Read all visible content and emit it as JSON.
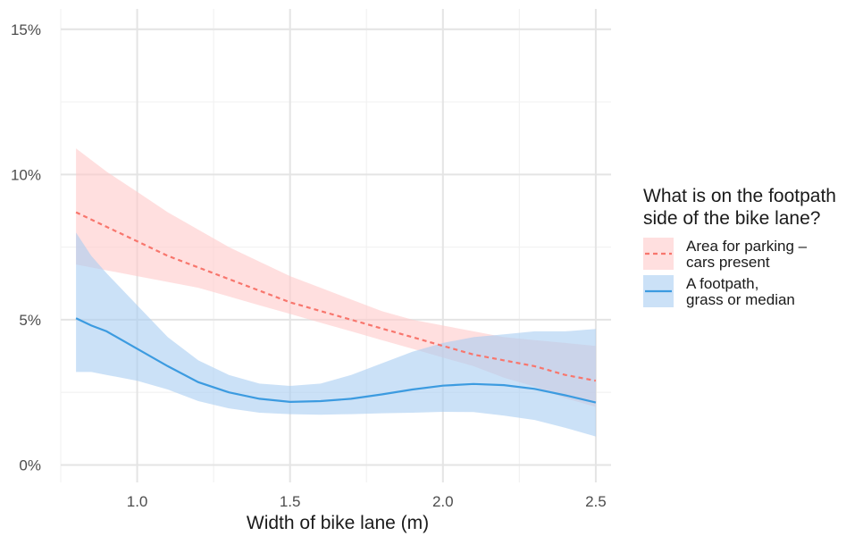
{
  "chart_data": {
    "type": "line",
    "title": "",
    "xlabel": "Width of bike lane (m)",
    "ylabel": "",
    "xlim": [
      0.75,
      2.55
    ],
    "ylim": [
      -0.006,
      0.157
    ],
    "x_ticks": [
      1.0,
      1.5,
      2.0,
      2.5
    ],
    "x_tick_labels": [
      "1.0",
      "1.5",
      "2.0",
      "2.5"
    ],
    "y_ticks": [
      0,
      0.05,
      0.1,
      0.15
    ],
    "y_tick_labels": [
      "0%",
      "5%",
      "10%",
      "15%"
    ],
    "grid": true,
    "legend": {
      "title_lines": [
        "What is on the footpath",
        "side of the bike lane?"
      ],
      "placement": "right"
    },
    "series": [
      {
        "label_lines": [
          "Area for parking –",
          "cars present"
        ],
        "color": "#F8766D",
        "ribbon_color": "#FFC9C9",
        "line_style": "dashed",
        "x": [
          0.8,
          0.9,
          1.0,
          1.1,
          1.2,
          1.3,
          1.4,
          1.5,
          1.6,
          1.7,
          1.8,
          1.9,
          2.0,
          2.1,
          2.2,
          2.3,
          2.4,
          2.5
        ],
        "y": [
          0.087,
          0.082,
          0.077,
          0.072,
          0.068,
          0.064,
          0.06,
          0.056,
          0.053,
          0.05,
          0.047,
          0.044,
          0.041,
          0.038,
          0.036,
          0.034,
          0.031,
          0.029
        ],
        "lower": [
          0.069,
          0.067,
          0.065,
          0.063,
          0.061,
          0.058,
          0.055,
          0.052,
          0.049,
          0.046,
          0.043,
          0.04,
          0.037,
          0.034,
          0.03,
          0.027,
          0.023,
          0.02
        ],
        "upper": [
          0.109,
          0.101,
          0.094,
          0.087,
          0.081,
          0.075,
          0.07,
          0.065,
          0.061,
          0.057,
          0.053,
          0.05,
          0.048,
          0.046,
          0.044,
          0.043,
          0.042,
          0.041
        ]
      },
      {
        "label_lines": [
          "A footpath,",
          "grass or median"
        ],
        "color": "#3C9BE0",
        "ribbon_color": "#A8CDF2",
        "line_style": "solid",
        "x": [
          0.8,
          0.85,
          0.9,
          1.0,
          1.1,
          1.2,
          1.3,
          1.4,
          1.5,
          1.6,
          1.7,
          1.8,
          1.9,
          2.0,
          2.1,
          2.2,
          2.3,
          2.4,
          2.5
        ],
        "y": [
          0.0505,
          0.048,
          0.046,
          0.04,
          0.034,
          0.0285,
          0.025,
          0.0228,
          0.0217,
          0.022,
          0.0228,
          0.0243,
          0.026,
          0.0273,
          0.0279,
          0.0275,
          0.0262,
          0.024,
          0.0215
        ],
        "lower": [
          0.032,
          0.032,
          0.031,
          0.029,
          0.026,
          0.022,
          0.0195,
          0.018,
          0.0175,
          0.0173,
          0.0175,
          0.0178,
          0.018,
          0.0183,
          0.0182,
          0.017,
          0.0155,
          0.0128,
          0.0098
        ],
        "upper": [
          0.08,
          0.072,
          0.066,
          0.055,
          0.044,
          0.036,
          0.031,
          0.028,
          0.0272,
          0.028,
          0.031,
          0.035,
          0.039,
          0.042,
          0.044,
          0.045,
          0.046,
          0.046,
          0.0468
        ]
      }
    ]
  }
}
